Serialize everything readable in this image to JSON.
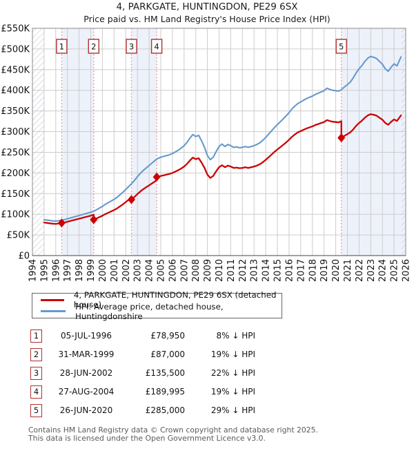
{
  "page": {
    "title": "4, PARKGATE, HUNTINGDON, PE29 6SX",
    "subtitle": "Price paid vs. HM Land Registry's House Price Index (HPI)"
  },
  "chart_data": {
    "type": "line",
    "title": "4, PARKGATE, HUNTINGDON, PE29 6SX",
    "subtitle": "Price paid vs. HM Land Registry's House Price Index (HPI)",
    "x_range": [
      1994,
      2026
    ],
    "y_range": [
      0,
      550000
    ],
    "y_tick_step": 50000,
    "y_tick_labels": [
      "£0",
      "£50K",
      "£100K",
      "£150K",
      "£200K",
      "£250K",
      "£300K",
      "£350K",
      "£400K",
      "£450K",
      "£500K",
      "£550K"
    ],
    "x_tick_labels": [
      1994,
      1995,
      1996,
      1997,
      1998,
      1999,
      2000,
      2001,
      2002,
      2003,
      2004,
      2005,
      2006,
      2007,
      2008,
      2009,
      2010,
      2011,
      2012,
      2013,
      2014,
      2015,
      2016,
      2017,
      2018,
      2019,
      2020,
      2021,
      2022,
      2023,
      2024,
      2025,
      2026
    ],
    "grid": true,
    "legend_position": "below",
    "grid_color": "#cccccc",
    "band_color": "#edf1fa",
    "dotted_line_color": "#f08080",
    "shaded_periods": [
      [
        1996.51,
        1999.25
      ],
      [
        2002.49,
        2004.65
      ],
      [
        2020.48,
        2026
      ]
    ],
    "hatch_periods": [
      [
        1994,
        1995.0
      ],
      [
        2025.65,
        2026
      ]
    ],
    "sales": [
      {
        "n": "1",
        "x": 1996.51,
        "price": 78950
      },
      {
        "n": "2",
        "x": 1999.25,
        "price": 87000
      },
      {
        "n": "3",
        "x": 2002.49,
        "price": 135500
      },
      {
        "n": "4",
        "x": 2004.65,
        "price": 189995
      },
      {
        "n": "5",
        "x": 2020.48,
        "price": 285000
      }
    ],
    "series": [
      {
        "name": "HPI: Average price, detached house, Huntingdonshire",
        "color": "#6699cc",
        "width": 2.1,
        "points": [
          [
            1995.0,
            87000
          ],
          [
            1995.25,
            86000
          ],
          [
            1995.5,
            85000
          ],
          [
            1995.75,
            84000
          ],
          [
            1996.0,
            83500
          ],
          [
            1996.25,
            84500
          ],
          [
            1996.51,
            85800
          ],
          [
            1996.75,
            87000
          ],
          [
            1997.0,
            89000
          ],
          [
            1997.25,
            91000
          ],
          [
            1997.5,
            93000
          ],
          [
            1997.75,
            95000
          ],
          [
            1998.0,
            97000
          ],
          [
            1998.25,
            99000
          ],
          [
            1998.5,
            101000
          ],
          [
            1998.75,
            103000
          ],
          [
            1999.0,
            105000
          ],
          [
            1999.25,
            107400
          ],
          [
            1999.5,
            111000
          ],
          [
            1999.75,
            115000
          ],
          [
            2000.0,
            119000
          ],
          [
            2000.25,
            124000
          ],
          [
            2000.5,
            128000
          ],
          [
            2000.75,
            132000
          ],
          [
            2001.0,
            136000
          ],
          [
            2001.25,
            141000
          ],
          [
            2001.5,
            147000
          ],
          [
            2001.75,
            153000
          ],
          [
            2002.0,
            160000
          ],
          [
            2002.25,
            167000
          ],
          [
            2002.49,
            173700
          ],
          [
            2002.75,
            182000
          ],
          [
            2003.0,
            191000
          ],
          [
            2003.25,
            199000
          ],
          [
            2003.5,
            206000
          ],
          [
            2003.75,
            212000
          ],
          [
            2004.0,
            218000
          ],
          [
            2004.25,
            224000
          ],
          [
            2004.5,
            230000
          ],
          [
            2004.75,
            235000
          ],
          [
            2005.0,
            238000
          ],
          [
            2005.25,
            240000
          ],
          [
            2005.5,
            242000
          ],
          [
            2005.75,
            244000
          ],
          [
            2006.0,
            247000
          ],
          [
            2006.25,
            251000
          ],
          [
            2006.5,
            255000
          ],
          [
            2006.75,
            260000
          ],
          [
            2007.0,
            266000
          ],
          [
            2007.25,
            274000
          ],
          [
            2007.5,
            284000
          ],
          [
            2007.75,
            293000
          ],
          [
            2008.0,
            288000
          ],
          [
            2008.25,
            291000
          ],
          [
            2008.5,
            278000
          ],
          [
            2008.75,
            262000
          ],
          [
            2009.0,
            242000
          ],
          [
            2009.25,
            232000
          ],
          [
            2009.5,
            238000
          ],
          [
            2009.75,
            252000
          ],
          [
            2010.0,
            264000
          ],
          [
            2010.25,
            270000
          ],
          [
            2010.5,
            264000
          ],
          [
            2010.75,
            269000
          ],
          [
            2011.0,
            266000
          ],
          [
            2011.25,
            262000
          ],
          [
            2011.5,
            263000
          ],
          [
            2011.75,
            261000
          ],
          [
            2012.0,
            262000
          ],
          [
            2012.25,
            264000
          ],
          [
            2012.5,
            262000
          ],
          [
            2012.75,
            264000
          ],
          [
            2013.0,
            266000
          ],
          [
            2013.25,
            269000
          ],
          [
            2013.5,
            273000
          ],
          [
            2013.75,
            279000
          ],
          [
            2014.0,
            286000
          ],
          [
            2014.25,
            294000
          ],
          [
            2014.5,
            302000
          ],
          [
            2014.75,
            310000
          ],
          [
            2015.0,
            317000
          ],
          [
            2015.25,
            324000
          ],
          [
            2015.5,
            331000
          ],
          [
            2015.75,
            338000
          ],
          [
            2016.0,
            346000
          ],
          [
            2016.25,
            355000
          ],
          [
            2016.5,
            362000
          ],
          [
            2016.75,
            368000
          ],
          [
            2017.0,
            372000
          ],
          [
            2017.25,
            376000
          ],
          [
            2017.5,
            380000
          ],
          [
            2017.75,
            383000
          ],
          [
            2018.0,
            386000
          ],
          [
            2018.25,
            390000
          ],
          [
            2018.5,
            393000
          ],
          [
            2018.75,
            396000
          ],
          [
            2019.0,
            399000
          ],
          [
            2019.25,
            405000
          ],
          [
            2019.5,
            402000
          ],
          [
            2019.75,
            400000
          ],
          [
            2020.0,
            399000
          ],
          [
            2020.25,
            398000
          ],
          [
            2020.48,
            401400
          ],
          [
            2020.75,
            408000
          ],
          [
            2021.0,
            414000
          ],
          [
            2021.25,
            420000
          ],
          [
            2021.5,
            430000
          ],
          [
            2021.75,
            442000
          ],
          [
            2022.0,
            452000
          ],
          [
            2022.25,
            460000
          ],
          [
            2022.5,
            470000
          ],
          [
            2022.75,
            478000
          ],
          [
            2023.0,
            482000
          ],
          [
            2023.25,
            480000
          ],
          [
            2023.5,
            477000
          ],
          [
            2023.75,
            470000
          ],
          [
            2024.0,
            463000
          ],
          [
            2024.25,
            452000
          ],
          [
            2024.5,
            446000
          ],
          [
            2024.75,
            456000
          ],
          [
            2025.0,
            464000
          ],
          [
            2025.25,
            459000
          ],
          [
            2025.6,
            481000
          ]
        ]
      },
      {
        "name": "4, PARKGATE, HUNTINGDON, PE29 6SX (detached house)",
        "color": "#cc0000",
        "width": 2.3,
        "points": [
          [
            1995.0,
            80000
          ],
          [
            1995.25,
            79000
          ],
          [
            1995.5,
            78000
          ],
          [
            1995.75,
            77200
          ],
          [
            1996.0,
            76800
          ],
          [
            1996.25,
            77700
          ],
          [
            1996.51,
            78950
          ],
          [
            1996.75,
            80000
          ],
          [
            1997.0,
            81900
          ],
          [
            1997.25,
            83700
          ],
          [
            1997.5,
            85600
          ],
          [
            1997.75,
            87400
          ],
          [
            1998.0,
            89200
          ],
          [
            1998.25,
            91100
          ],
          [
            1998.5,
            92900
          ],
          [
            1998.75,
            94800
          ],
          [
            1999.0,
            96600
          ],
          [
            1999.25,
            98800
          ],
          [
            1999.25,
            87000
          ],
          [
            1999.5,
            89900
          ],
          [
            1999.75,
            93200
          ],
          [
            2000.0,
            96400
          ],
          [
            2000.25,
            100400
          ],
          [
            2000.5,
            103700
          ],
          [
            2000.75,
            106900
          ],
          [
            2001.0,
            110200
          ],
          [
            2001.25,
            114200
          ],
          [
            2001.5,
            119100
          ],
          [
            2001.75,
            123900
          ],
          [
            2002.0,
            129600
          ],
          [
            2002.25,
            135300
          ],
          [
            2002.49,
            140700
          ],
          [
            2002.49,
            135500
          ],
          [
            2002.75,
            142000
          ],
          [
            2003.0,
            149000
          ],
          [
            2003.25,
            155200
          ],
          [
            2003.5,
            160700
          ],
          [
            2003.75,
            165400
          ],
          [
            2004.0,
            170000
          ],
          [
            2004.25,
            174700
          ],
          [
            2004.5,
            179400
          ],
          [
            2004.65,
            183000
          ],
          [
            2004.65,
            189995
          ],
          [
            2004.75,
            190400
          ],
          [
            2005.0,
            192800
          ],
          [
            2005.25,
            194400
          ],
          [
            2005.5,
            196000
          ],
          [
            2005.75,
            197600
          ],
          [
            2006.0,
            200100
          ],
          [
            2006.25,
            203300
          ],
          [
            2006.5,
            206600
          ],
          [
            2006.75,
            210600
          ],
          [
            2007.0,
            215500
          ],
          [
            2007.25,
            221900
          ],
          [
            2007.5,
            230000
          ],
          [
            2007.75,
            237300
          ],
          [
            2008.0,
            233300
          ],
          [
            2008.25,
            235700
          ],
          [
            2008.5,
            225200
          ],
          [
            2008.75,
            212200
          ],
          [
            2009.0,
            196000
          ],
          [
            2009.25,
            187900
          ],
          [
            2009.5,
            192800
          ],
          [
            2009.75,
            204100
          ],
          [
            2010.0,
            213800
          ],
          [
            2010.25,
            218700
          ],
          [
            2010.5,
            213800
          ],
          [
            2010.75,
            217900
          ],
          [
            2011.0,
            215500
          ],
          [
            2011.25,
            212200
          ],
          [
            2011.5,
            213000
          ],
          [
            2011.75,
            211400
          ],
          [
            2012.0,
            212200
          ],
          [
            2012.25,
            213800
          ],
          [
            2012.5,
            212200
          ],
          [
            2012.75,
            213800
          ],
          [
            2013.0,
            215500
          ],
          [
            2013.25,
            217900
          ],
          [
            2013.5,
            221100
          ],
          [
            2013.75,
            226000
          ],
          [
            2014.0,
            231700
          ],
          [
            2014.25,
            238100
          ],
          [
            2014.5,
            244600
          ],
          [
            2014.75,
            251100
          ],
          [
            2015.0,
            256800
          ],
          [
            2015.25,
            262400
          ],
          [
            2015.5,
            268100
          ],
          [
            2015.75,
            273800
          ],
          [
            2016.0,
            280300
          ],
          [
            2016.25,
            287500
          ],
          [
            2016.5,
            293200
          ],
          [
            2016.75,
            298100
          ],
          [
            2017.0,
            301300
          ],
          [
            2017.25,
            304600
          ],
          [
            2017.5,
            307800
          ],
          [
            2017.75,
            310200
          ],
          [
            2018.0,
            312700
          ],
          [
            2018.25,
            315900
          ],
          [
            2018.5,
            318300
          ],
          [
            2018.75,
            320800
          ],
          [
            2019.0,
            323200
          ],
          [
            2019.25,
            328000
          ],
          [
            2019.5,
            325600
          ],
          [
            2019.75,
            324000
          ],
          [
            2020.0,
            323200
          ],
          [
            2020.25,
            322400
          ],
          [
            2020.48,
            325100
          ],
          [
            2020.48,
            285000
          ],
          [
            2020.75,
            289700
          ],
          [
            2021.0,
            294000
          ],
          [
            2021.25,
            298200
          ],
          [
            2021.5,
            305300
          ],
          [
            2021.75,
            313900
          ],
          [
            2022.0,
            321000
          ],
          [
            2022.25,
            326600
          ],
          [
            2022.5,
            333700
          ],
          [
            2022.75,
            339400
          ],
          [
            2023.0,
            342200
          ],
          [
            2023.25,
            340800
          ],
          [
            2023.5,
            338700
          ],
          [
            2023.75,
            333700
          ],
          [
            2024.0,
            328800
          ],
          [
            2024.25,
            321000
          ],
          [
            2024.5,
            316700
          ],
          [
            2024.75,
            323800
          ],
          [
            2025.0,
            329500
          ],
          [
            2025.25,
            325900
          ],
          [
            2025.6,
            339400
          ]
        ]
      }
    ]
  },
  "legend": {
    "items": [
      {
        "label": "4, PARKGATE, HUNTINGDON, PE29 6SX (detached house)",
        "color": "#cc0000"
      },
      {
        "label": "HPI: Average price, detached house, Huntingdonshire",
        "color": "#6699cc"
      }
    ]
  },
  "table": {
    "rows": [
      {
        "n": "1",
        "date": "05-JUL-1996",
        "price": "£78,950",
        "hpi": "8% ↓ HPI"
      },
      {
        "n": "2",
        "date": "31-MAR-1999",
        "price": "£87,000",
        "hpi": "19% ↓ HPI"
      },
      {
        "n": "3",
        "date": "28-JUN-2002",
        "price": "£135,500",
        "hpi": "22% ↓ HPI"
      },
      {
        "n": "4",
        "date": "27-AUG-2004",
        "price": "£189,995",
        "hpi": "19% ↓ HPI"
      },
      {
        "n": "5",
        "date": "26-JUN-2020",
        "price": "£285,000",
        "hpi": "29% ↓ HPI"
      }
    ]
  },
  "footer": {
    "line1": "Contains HM Land Registry data © Crown copyright and database right 2025.",
    "line2": "This data is licensed under the Open Government Licence v3.0."
  }
}
